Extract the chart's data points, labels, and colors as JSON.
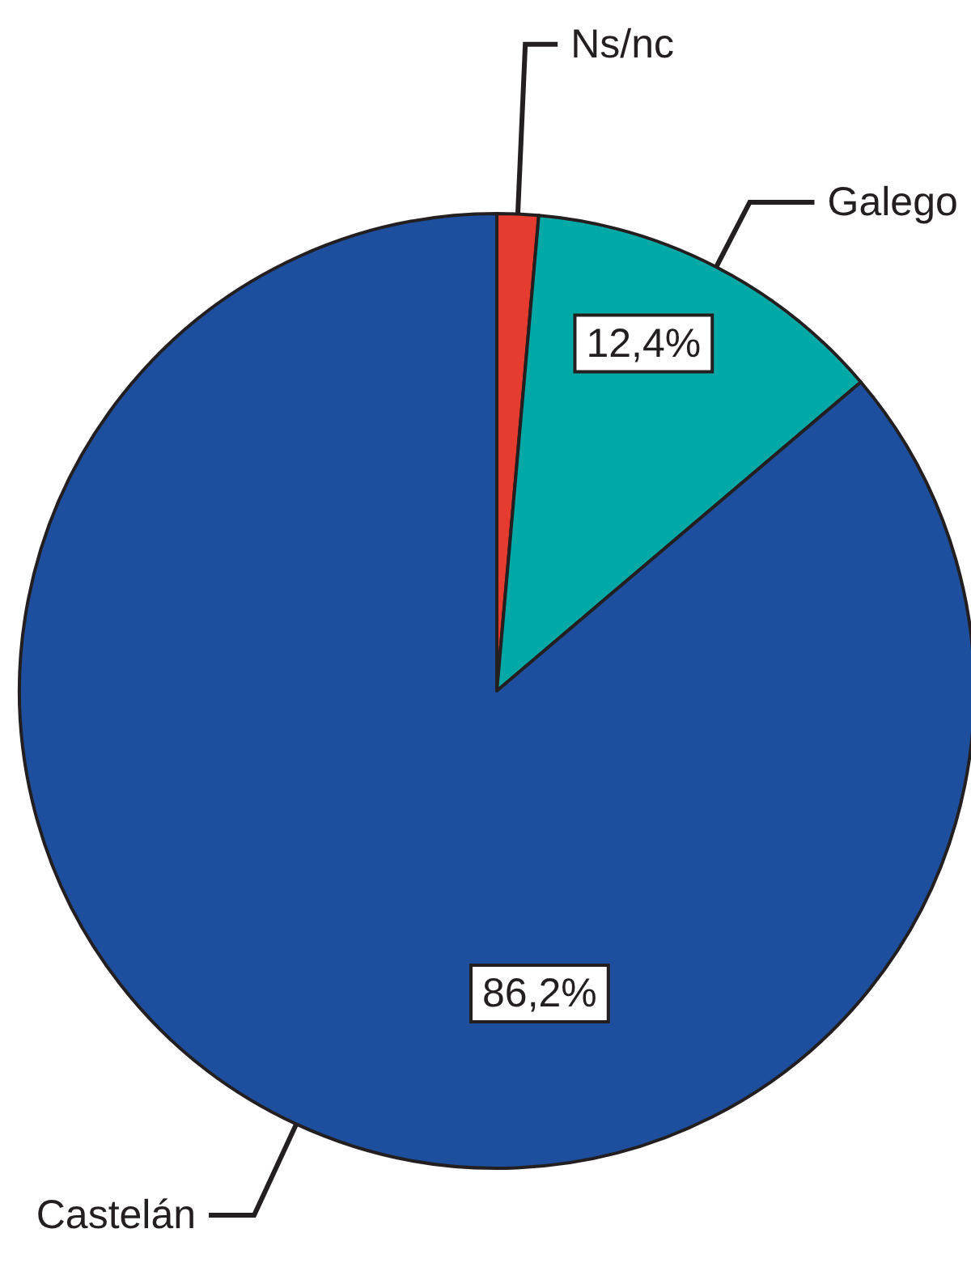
{
  "chart_data": {
    "type": "pie",
    "categories": [
      "Ns/nc",
      "Galego",
      "Castelán"
    ],
    "values": [
      1.4,
      12.4,
      86.2
    ],
    "colors": [
      "#e63c30",
      "#00a9a5",
      "#1e4f9e"
    ],
    "value_labels": [
      null,
      "12,4%",
      "86,2%"
    ]
  }
}
